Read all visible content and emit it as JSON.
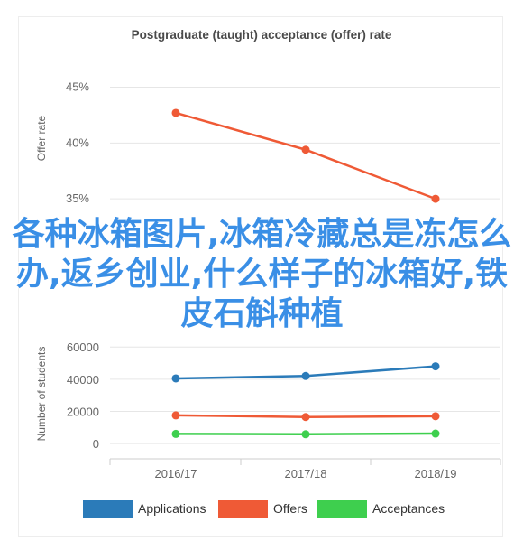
{
  "title": "Postgraduate (taught) acceptance (offer) rate",
  "overlay_text": "各种冰箱图片,冰箱冷藏总是冻怎么办,返乡创业,什么样子的冰箱好,铁皮石斛种植",
  "colors": {
    "applications": "#2b7bb9",
    "offers": "#ef5a36",
    "acceptances": "#3ecf4e",
    "rate_line": "#ef5a36",
    "grid": "#e6e6e6",
    "axis_text": "#666666"
  },
  "legend": [
    {
      "key": "applications",
      "label": "Applications"
    },
    {
      "key": "offers",
      "label": "Offers"
    },
    {
      "key": "acceptances",
      "label": "Acceptances"
    }
  ],
  "chart_data": [
    {
      "type": "line",
      "title": "Postgraduate (taught) acceptance (offer) rate",
      "ylabel": "Offer rate",
      "categories": [
        "2016/17",
        "2017/18",
        "2018/19"
      ],
      "series": [
        {
          "key": "rate",
          "values": [
            42.7,
            39.4,
            35.0
          ]
        }
      ],
      "yticks": [
        "45%",
        "40%",
        "35%"
      ],
      "ytick_values": [
        45,
        40,
        35
      ],
      "ylim": [
        34.2,
        46.5
      ],
      "grid": true
    },
    {
      "type": "line",
      "ylabel": "Number of students",
      "categories": [
        "2016/17",
        "2017/18",
        "2018/19"
      ],
      "series": [
        {
          "name": "Applications",
          "key": "applications",
          "values": [
            40500,
            42000,
            48000
          ]
        },
        {
          "name": "Offers",
          "key": "offers",
          "values": [
            17500,
            16500,
            17000
          ]
        },
        {
          "name": "Acceptances",
          "key": "acceptances",
          "values": [
            6000,
            5800,
            6200
          ]
        }
      ],
      "yticks": [
        "60000",
        "40000",
        "20000",
        "0"
      ],
      "ytick_values": [
        60000,
        40000,
        20000,
        0
      ],
      "ylim": [
        -5000,
        68000
      ],
      "grid": true,
      "legend_position": "bottom"
    }
  ]
}
